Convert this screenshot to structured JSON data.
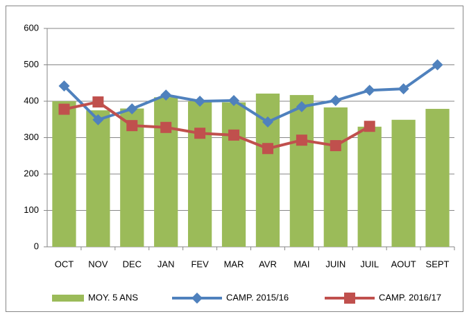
{
  "chart_data": {
    "type": "bar_line",
    "categories": [
      "OCT",
      "NOV",
      "DEC",
      "JAN",
      "FEV",
      "MAR",
      "AVR",
      "MAI",
      "JUIN",
      "JUIL",
      "AOUT",
      "SEPT"
    ],
    "series": [
      {
        "name": "MOY. 5 ANS",
        "kind": "bar",
        "color": "#9bbb59",
        "values": [
          400,
          375,
          380,
          411,
          400,
          397,
          421,
          417,
          383,
          330,
          349,
          379
        ]
      },
      {
        "name": "CAMP. 2015/16",
        "kind": "line",
        "marker": "diamond",
        "color": "#4f81bd",
        "values": [
          442,
          349,
          379,
          417,
          400,
          402,
          343,
          385,
          402,
          430,
          434,
          500
        ]
      },
      {
        "name": "CAMP. 2016/17",
        "kind": "line",
        "marker": "square",
        "color": "#c0504d",
        "values": [
          378,
          398,
          333,
          328,
          312,
          307,
          270,
          293,
          278,
          331,
          null,
          null
        ]
      }
    ],
    "ylim": [
      0,
      600
    ],
    "yticks": [
      0,
      100,
      200,
      300,
      400,
      500,
      600
    ],
    "grid": true,
    "legend": "bottom"
  }
}
